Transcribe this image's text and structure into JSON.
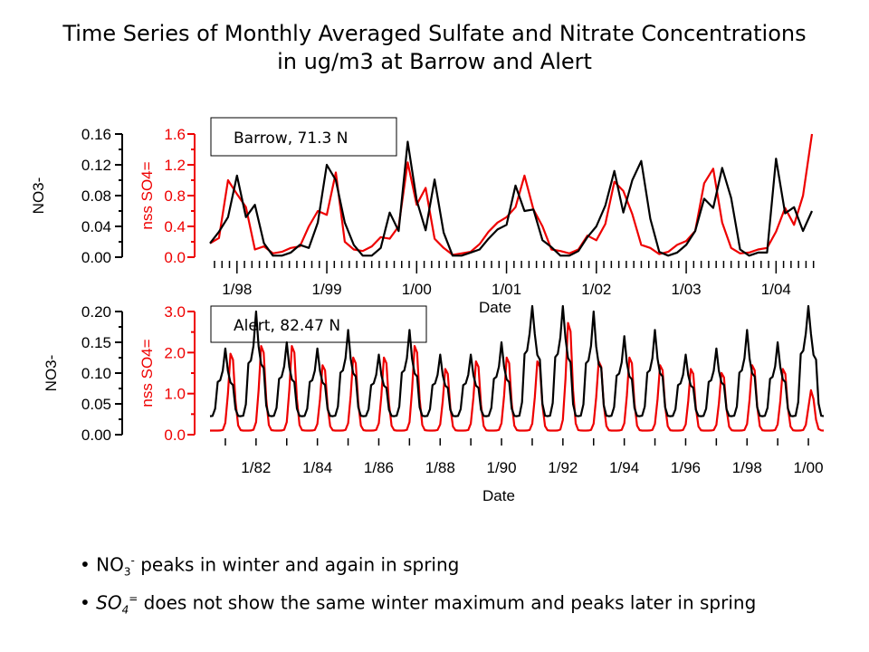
{
  "title": {
    "line1": "Time Series of Monthly Averaged Sulfate and Nitrate Concentrations",
    "line2": "in ug/m3 at Barrow and Alert"
  },
  "colors": {
    "no3": "#000000",
    "so4": "#ee0000"
  },
  "notes": [
    {
      "bullet": "•",
      "species": "NO",
      "sub": "3",
      "sup": "-",
      "text": " peaks in winter and again in spring"
    },
    {
      "bullet": "•",
      "species": "SO",
      "sub": "4",
      "sup": "=",
      "text": " does not show the same winter maximum and peaks later in spring"
    }
  ],
  "chart_data": [
    {
      "type": "line",
      "panel": "Barrow",
      "label_box": "Barrow, 71.3 N",
      "xlabel": "Date",
      "x_tick_labels": [
        "1/98",
        "1/99",
        "1/00",
        "1/01",
        "1/02",
        "1/03",
        "1/04"
      ],
      "x_tick_years": [
        1998,
        1999,
        2000,
        2001,
        2002,
        2003,
        2004
      ],
      "xlim": [
        1997.7,
        2004.45
      ],
      "y_left": {
        "label": "NO3-",
        "ticks": [
          "0.00",
          "0.04",
          "0.08",
          "0.12",
          "0.16"
        ],
        "lim": [
          0,
          0.16
        ]
      },
      "y_right": {
        "label": "nss SO4=",
        "ticks": [
          "0.0",
          "0.4",
          "0.8",
          "1.2",
          "1.6"
        ],
        "lim": [
          0,
          1.6
        ]
      },
      "series": [
        {
          "name": "NO3-",
          "axis": "left",
          "color": "#000000",
          "x": [
            1997.7,
            1997.8,
            1997.9,
            1998.0,
            1998.1,
            1998.2,
            1998.3,
            1998.4,
            1998.5,
            1998.6,
            1998.7,
            1998.8,
            1998.9,
            1999.0,
            1999.1,
            1999.2,
            1999.3,
            1999.4,
            1999.5,
            1999.6,
            1999.7,
            1999.8,
            1999.9,
            2000.0,
            2000.1,
            2000.2,
            2000.3,
            2000.4,
            2000.5,
            2000.6,
            2000.7,
            2000.8,
            2000.9,
            2001.0,
            2001.1,
            2001.2,
            2001.3,
            2001.4,
            2001.5,
            2001.6,
            2001.7,
            2001.8,
            2001.9,
            2002.0,
            2002.1,
            2002.2,
            2002.3,
            2002.4,
            2002.5,
            2002.6,
            2002.7,
            2002.8,
            2002.9,
            2003.0,
            2003.1,
            2003.2,
            2003.3,
            2003.4,
            2003.5,
            2003.6,
            2003.7,
            2003.8,
            2003.9,
            2004.0,
            2004.1,
            2004.2,
            2004.3,
            2004.4
          ],
          "values": [
            0.018,
            0.033,
            0.052,
            0.106,
            0.052,
            0.068,
            0.018,
            0.002,
            0.002,
            0.006,
            0.016,
            0.012,
            0.045,
            0.12,
            0.1,
            0.045,
            0.016,
            0.002,
            0.002,
            0.012,
            0.058,
            0.034,
            0.15,
            0.074,
            0.035,
            0.101,
            0.032,
            0.002,
            0.002,
            0.006,
            0.01,
            0.024,
            0.036,
            0.042,
            0.093,
            0.06,
            0.062,
            0.022,
            0.013,
            0.002,
            0.002,
            0.008,
            0.026,
            0.04,
            0.067,
            0.112,
            0.058,
            0.1,
            0.125,
            0.05,
            0.007,
            0.002,
            0.006,
            0.016,
            0.034,
            0.076,
            0.064,
            0.116,
            0.077,
            0.01,
            0.002,
            0.006,
            0.006,
            0.128,
            0.057,
            0.065,
            0.034,
            0.06
          ]
        },
        {
          "name": "nss SO4=",
          "axis": "right",
          "color": "#ee0000",
          "x": [
            1997.7,
            1997.8,
            1997.9,
            1998.0,
            1998.1,
            1998.2,
            1998.3,
            1998.4,
            1998.5,
            1998.6,
            1998.7,
            1998.8,
            1998.9,
            1999.0,
            1999.1,
            1999.2,
            1999.3,
            1999.4,
            1999.5,
            1999.6,
            1999.7,
            1999.8,
            1999.9,
            2000.0,
            2000.1,
            2000.2,
            2000.3,
            2000.4,
            2000.5,
            2000.6,
            2000.7,
            2000.8,
            2000.9,
            2001.0,
            2001.1,
            2001.2,
            2001.3,
            2001.4,
            2001.5,
            2001.6,
            2001.7,
            2001.8,
            2001.9,
            2002.0,
            2002.1,
            2002.2,
            2002.3,
            2002.4,
            2002.5,
            2002.6,
            2002.7,
            2002.8,
            2002.9,
            2003.0,
            2003.1,
            2003.2,
            2003.3,
            2003.4,
            2003.5,
            2003.6,
            2003.7,
            2003.8,
            2003.9,
            2004.0,
            2004.1,
            2004.2,
            2004.3,
            2004.4
          ],
          "values": [
            0.18,
            0.25,
            1.0,
            0.82,
            0.65,
            0.1,
            0.14,
            0.05,
            0.07,
            0.12,
            0.14,
            0.4,
            0.6,
            0.55,
            1.1,
            0.2,
            0.1,
            0.08,
            0.14,
            0.26,
            0.24,
            0.4,
            1.23,
            0.68,
            0.9,
            0.24,
            0.12,
            0.03,
            0.05,
            0.07,
            0.17,
            0.33,
            0.45,
            0.52,
            0.65,
            1.06,
            0.62,
            0.4,
            0.1,
            0.08,
            0.05,
            0.1,
            0.28,
            0.22,
            0.43,
            0.98,
            0.86,
            0.56,
            0.16,
            0.12,
            0.04,
            0.07,
            0.16,
            0.21,
            0.34,
            0.96,
            1.15,
            0.45,
            0.12,
            0.05,
            0.06,
            0.1,
            0.12,
            0.33,
            0.64,
            0.42,
            0.8,
            1.6
          ]
        }
      ]
    },
    {
      "type": "line",
      "panel": "Alert",
      "label_box": "Alert, 82.47 N",
      "xlabel": "Date",
      "x_tick_labels": [
        "1/82",
        "1/84",
        "1/86",
        "1/88",
        "1/90",
        "1/92",
        "1/94",
        "1/96",
        "1/98",
        "1/00"
      ],
      "x_tick_years": [
        1982,
        1984,
        1986,
        1988,
        1990,
        1992,
        1994,
        1996,
        1998,
        2000
      ],
      "xlim": [
        1980.5,
        2000.5
      ],
      "y_left": {
        "label": "NO3-",
        "ticks": [
          "0.00",
          "0.05",
          "0.10",
          "0.15",
          "0.20"
        ],
        "lim": [
          0,
          0.2
        ]
      },
      "y_right": {
        "label": "nss SO4=",
        "ticks": [
          "0.0",
          "1.0",
          "2.0",
          "3.0"
        ],
        "lim": [
          0,
          3.0
        ]
      },
      "series": [
        {
          "name": "NO3-",
          "axis": "left",
          "color": "#000000",
          "annual_peak_year": [
            1981.0,
            1982.0,
            1983.0,
            1984.0,
            1985.0,
            1986.0,
            1987.0,
            1988.0,
            1989.0,
            1990.0,
            1991.0,
            1992.0,
            1993.0,
            1994.0,
            1995.0,
            1996.0,
            1997.0,
            1998.0,
            1999.0,
            2000.0
          ],
          "annual_peak_value": [
            0.14,
            0.2,
            0.15,
            0.14,
            0.17,
            0.13,
            0.17,
            0.13,
            0.13,
            0.15,
            0.23,
            0.22,
            0.2,
            0.16,
            0.17,
            0.13,
            0.14,
            0.17,
            0.15,
            0.23
          ],
          "summer_min": 0.03
        },
        {
          "name": "nss SO4=",
          "axis": "right",
          "color": "#ee0000",
          "annual_peak_year": [
            1981.2,
            1982.2,
            1983.2,
            1984.2,
            1985.2,
            1986.2,
            1987.2,
            1988.2,
            1989.2,
            1990.2,
            1991.2,
            1992.2,
            1993.2,
            1994.2,
            1995.2,
            1996.2,
            1997.2,
            1998.2,
            1999.2,
            2000.1
          ],
          "annual_peak_value": [
            2.1,
            2.3,
            2.3,
            1.8,
            2.0,
            2.0,
            2.3,
            1.7,
            1.9,
            2.0,
            1.9,
            2.9,
            1.9,
            2.0,
            1.8,
            1.7,
            1.6,
            1.8,
            1.7,
            1.1
          ],
          "summer_min": 0.1
        }
      ]
    }
  ]
}
